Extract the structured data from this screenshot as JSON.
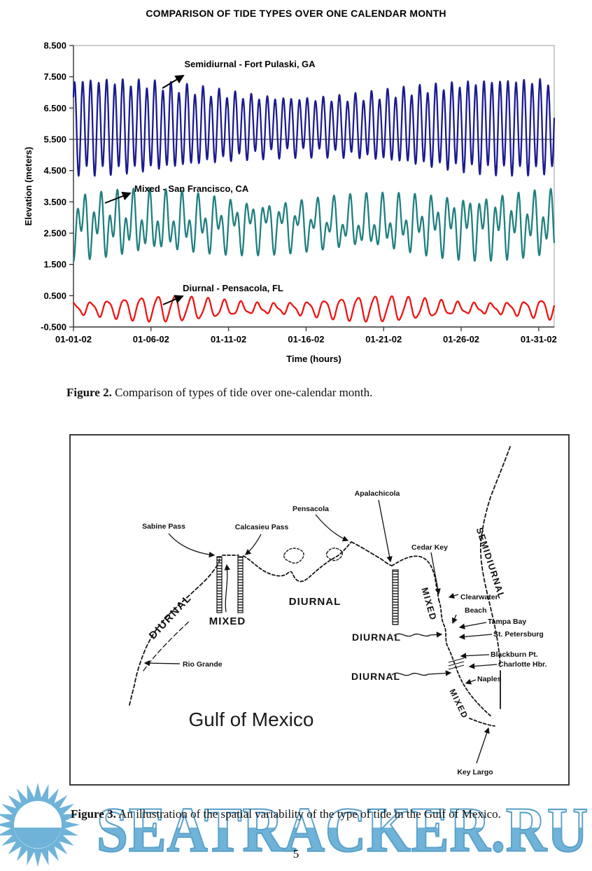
{
  "page": {
    "number": "5"
  },
  "captions": {
    "fig2_label": "Figure 2.",
    "fig2_text": " Comparison of types of tide over one-calendar month.",
    "fig3_label": "Figure 3.",
    "fig3_text": " An illustration of the spatial variability of the type of tide in the Gulf of Mexico."
  },
  "watermark": {
    "text": "SEATRACKER.RU",
    "color": "#6fb3d9",
    "stroke_color": "#5da2ca",
    "sun_color": "#6fb3d9"
  },
  "chart_data": {
    "type": "line",
    "title": "COMPARISON OF TIDE TYPES OVER ONE CALENDAR MONTH",
    "xlabel": "Time (hours)",
    "ylabel": "Elevation (meters)",
    "x_tick_labels": [
      "01-01-02",
      "01-06-02",
      "01-11-02",
      "01-16-02",
      "01-21-02",
      "01-26-02",
      "01-31-02"
    ],
    "x_tick_hours": [
      0,
      120,
      240,
      360,
      480,
      600,
      720
    ],
    "x_range_hours": [
      0,
      744
    ],
    "ylim": [
      -0.5,
      8.5
    ],
    "y_ticks": [
      8.5,
      7.5,
      6.5,
      5.5,
      4.5,
      3.5,
      2.5,
      1.5,
      0.5,
      -0.5
    ],
    "reference_line_y": 5.5,
    "grid": "single horizontal reference line at 5.500",
    "legend_position": "inline annotations with arrows",
    "frame_color": "#9a9a9a",
    "axis_color": "#333333",
    "series": [
      {
        "name": "Semidiurnal - Fort Pulaski, GA",
        "color": "#1b1b8e",
        "mean": 5.92,
        "approx_min": 4.5,
        "approx_max": 7.5,
        "components": [
          {
            "period_h": 12.42,
            "amplitude": 1.15,
            "phase_rad": -0.9
          },
          {
            "period_h": 25.82,
            "amplitude": 0.16,
            "phase_rad": 1.2
          }
        ],
        "modulation": {
          "period_h": 660,
          "depth": 0.25,
          "phase_h": 30
        }
      },
      {
        "name": "Mixed - San Francisco, CA",
        "color": "#217f7f",
        "mean": 2.78,
        "approx_min": 1.45,
        "approx_max": 4.05,
        "components": [
          {
            "period_h": 12.42,
            "amplitude": 0.56,
            "phase_rad": 3.14
          },
          {
            "period_h": 25.82,
            "amplitude": 0.52,
            "phase_rad": 2.8
          }
        ],
        "modulation": {
          "period_h": 660,
          "depth": 0.2,
          "phase_h": 30
        }
      },
      {
        "name": "Diurnal - Pensacola, FL",
        "color": "#ee1414",
        "mean": 0.09,
        "approx_min": -0.35,
        "approx_max": 0.6,
        "components": [
          {
            "period_h": 25.82,
            "amplitude": 0.27,
            "phase_rad": -0.3
          },
          {
            "period_h": 12.42,
            "amplitude": 0.05,
            "phase_rad": 1.0
          }
        ],
        "modulation": {
          "period_h": 330,
          "depth": 0.45,
          "phase_h": 140
        }
      }
    ],
    "annotations": [
      {
        "series": 0,
        "x": 357,
        "y": 58,
        "anchor": "middle",
        "arrow": [
          232,
          88,
          262,
          70
        ]
      },
      {
        "series": 1,
        "x": 192,
        "y": 236,
        "anchor": "start",
        "arrow": [
          150,
          252,
          186,
          238
        ]
      },
      {
        "series": 2,
        "x": 333,
        "y": 378,
        "anchor": "middle",
        "arrow": [
          233,
          397,
          261,
          385
        ]
      }
    ]
  },
  "map": {
    "sea_label": "Gulf of Mexico",
    "labels": {
      "sabine_pass": "Sabine Pass",
      "calcasieu_pass": "Calcasieu Pass",
      "pensacola": "Pensacola",
      "apalachicola": "Apalachicola",
      "cedar_key": "Cedar Key",
      "clearwater_line1": "Clearwater",
      "clearwater_line2": "Beach",
      "tampa_bay": "Tampa Bay",
      "st_petersburg": "St. Petersburg",
      "blackburn_pt": "Blackburn Pt.",
      "charlotte_hbr": "Charlotte Hbr.",
      "naples": "Naples",
      "key_largo": "Key Largo",
      "rio_grande": "Rio Grande"
    },
    "zones": {
      "diurnal": "DIURNAL",
      "mixed": "MIXED",
      "semidiurnal": "SEMIDIURNAL"
    }
  }
}
